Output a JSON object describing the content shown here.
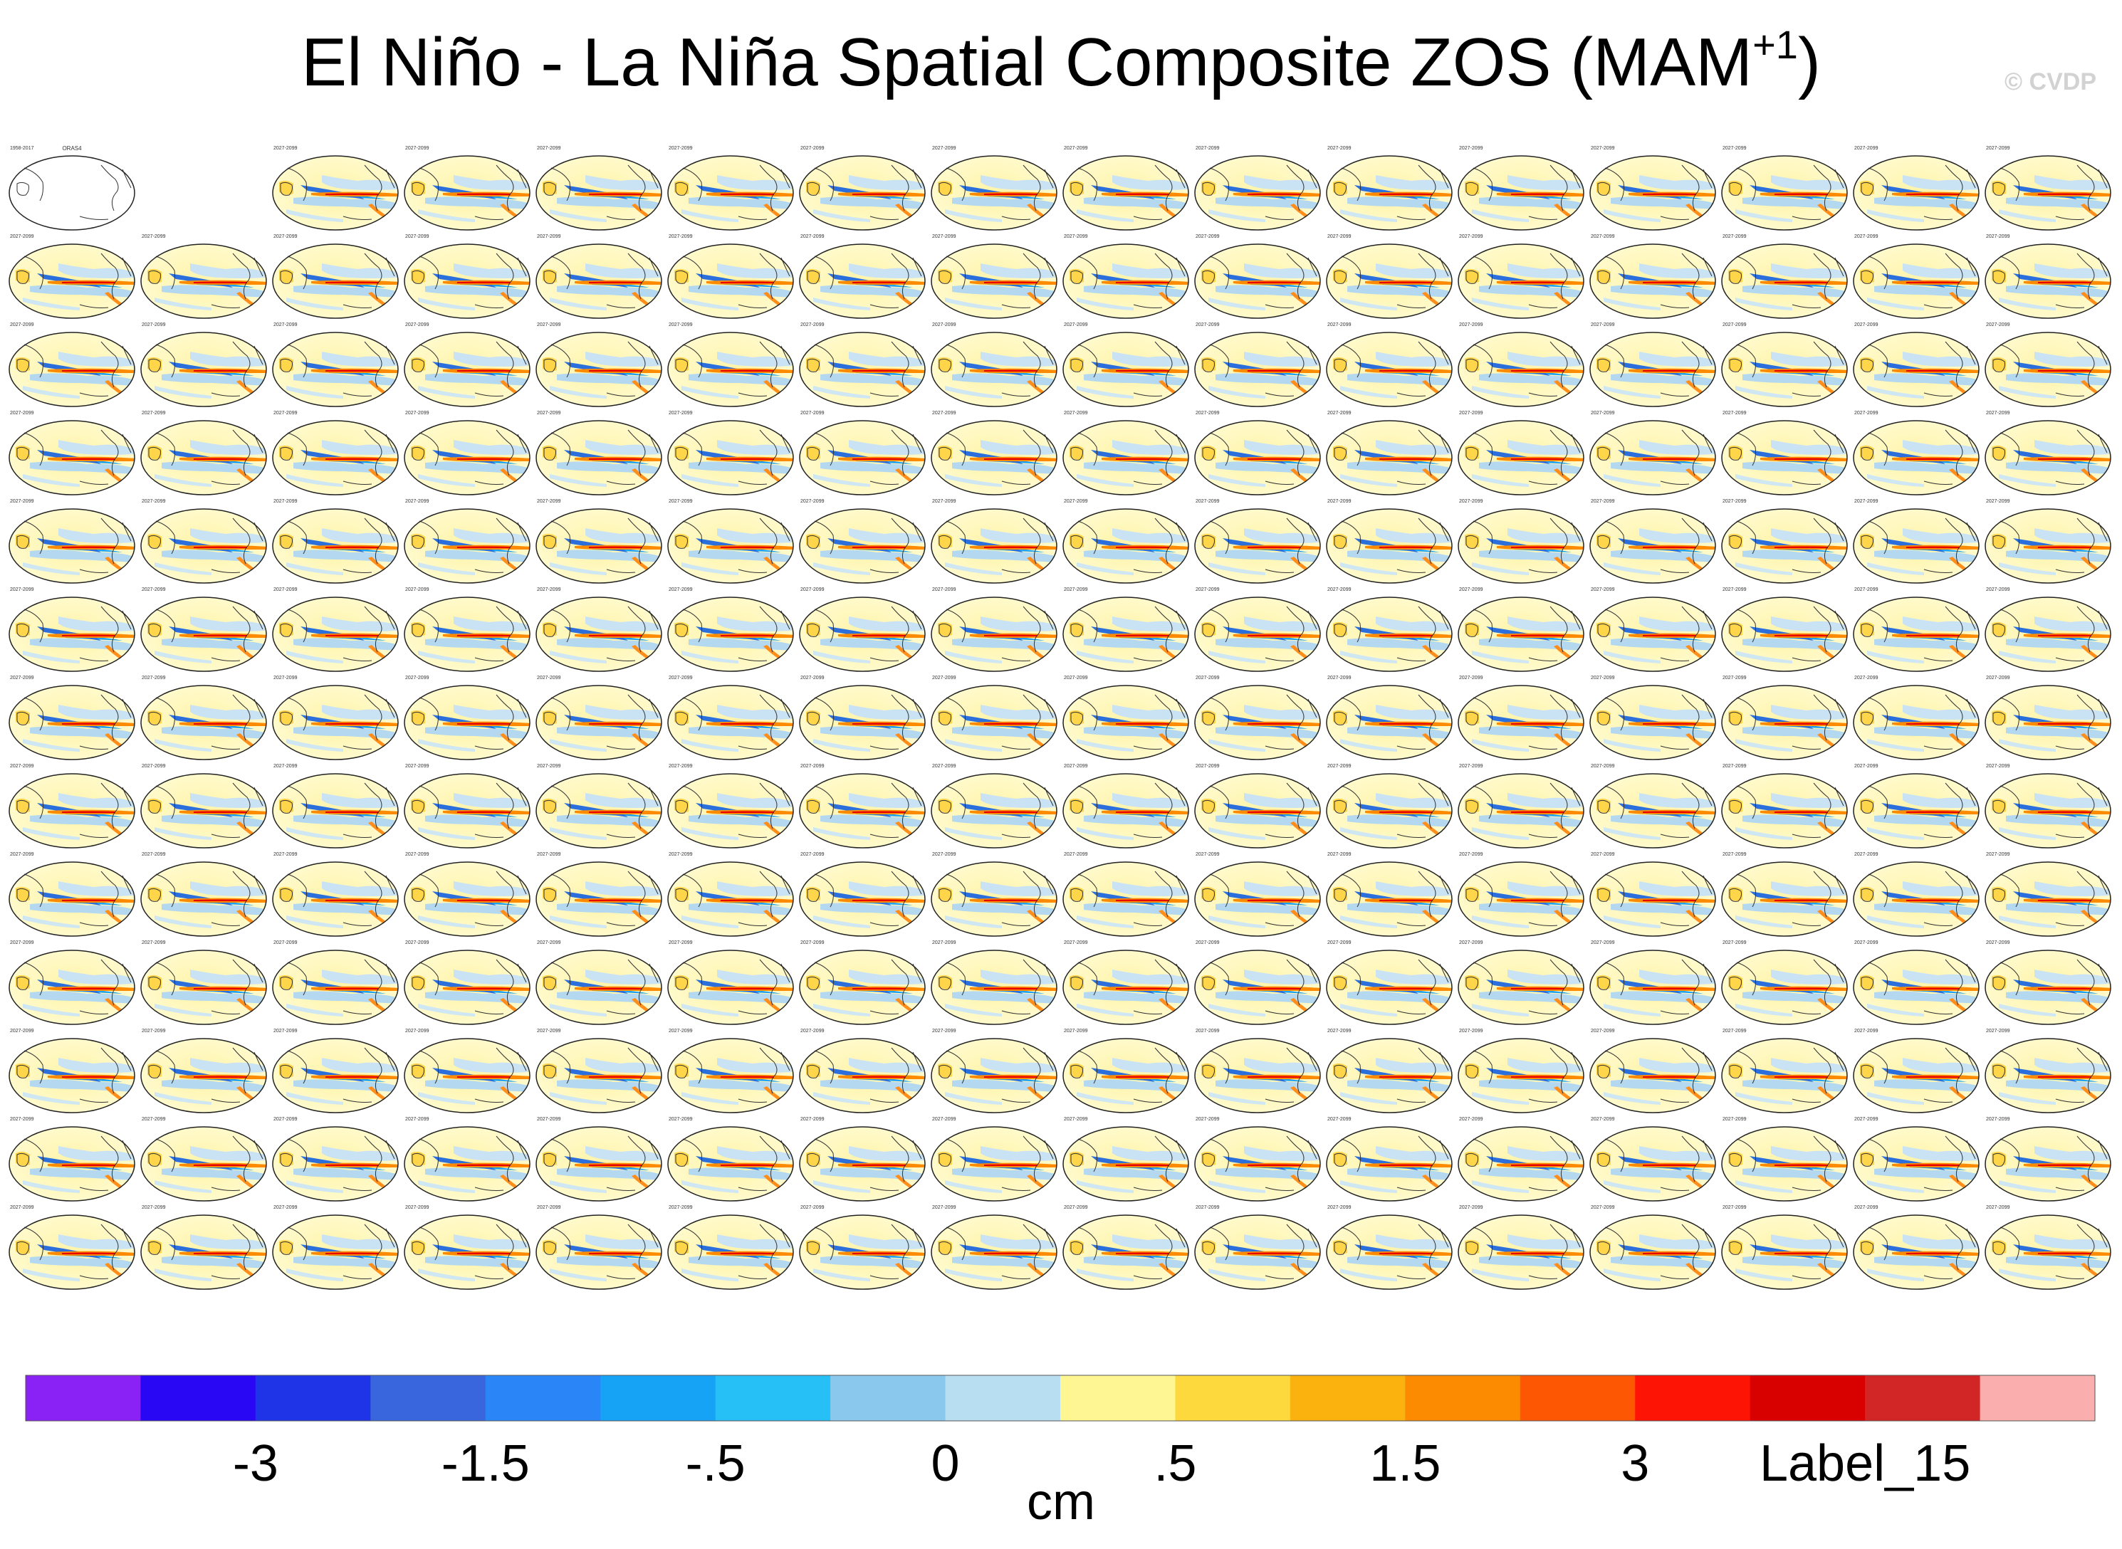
{
  "title": {
    "main": "El Niño - La Niña Spatial Composite ZOS (MAM",
    "superscript": "+1",
    "suffix": ")"
  },
  "watermark": "© CVDP",
  "chart_data": {
    "type": "heatmap",
    "units": "cm",
    "observation_panel": {
      "title": "ORAS4",
      "years": "1958-2017"
    },
    "model_panel_count": 208,
    "grid": {
      "columns": 16,
      "rows": 13
    },
    "model_period": "2027-2099",
    "colorbar": {
      "colors": [
        "#8a21f5",
        "#2a07f4",
        "#1e34e6",
        "#3a66dd",
        "#2a86f7",
        "#16a3f6",
        "#26c0f7",
        "#8ac9ed",
        "#b7def1",
        "#fef593",
        "#fdd93d",
        "#fcb20e",
        "#fd8b02",
        "#fd5703",
        "#fe1404",
        "#d90000",
        "#d22626",
        "#fbaeae"
      ],
      "labels": [
        "-3",
        "-1.5",
        "-.5",
        "0",
        ".5",
        "1.5",
        "3",
        "Label_15"
      ]
    }
  }
}
